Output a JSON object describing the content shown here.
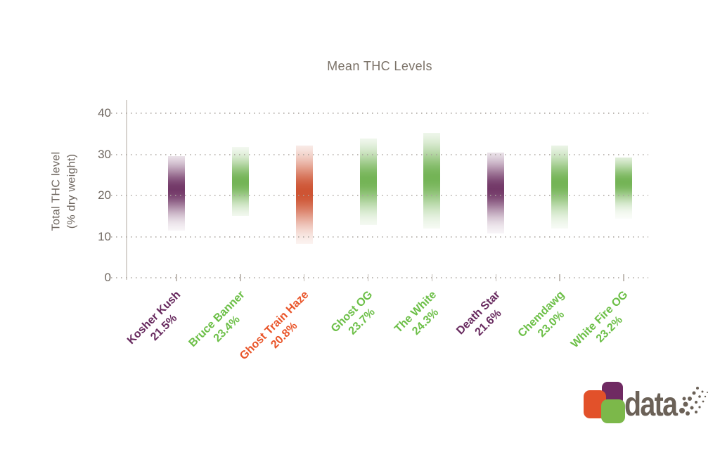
{
  "page": {
    "background": "#ffffff"
  },
  "chart_data": {
    "type": "bar",
    "style": "gaussian-gradient-vertical-bars",
    "title": "Mean THC Levels",
    "xlabel": "",
    "ylabel": "Total THC level (% dry weight)",
    "ylabel_lines": [
      "Total THC level",
      "(% dry weight)"
    ],
    "ylim": [
      0,
      40
    ],
    "yticks": [
      40,
      30,
      20,
      10,
      0
    ],
    "grid": "dotted horizontal gridlines, light vertical axis line, x tick marks at 0 line",
    "legend_position": "none",
    "categories": [
      "Kosher Kush",
      "Bruce Banner",
      "Ghost Train Haze",
      "Ghost OG",
      "The White",
      "Death Star",
      "Chemdawg",
      "White Fire OG"
    ],
    "values": [
      21.5,
      23.4,
      20.8,
      23.7,
      24.3,
      21.6,
      23.0,
      23.2
    ],
    "value_labels": [
      "21.5%",
      "23.4%",
      "20.8%",
      "23.7%",
      "24.3%",
      "21.6%",
      "23.0%",
      "23.2%"
    ],
    "series": [
      {
        "name": "Kosher Kush",
        "mean": 21.5,
        "mean_label": "21.5%",
        "range": [
          11.5,
          29.5
        ],
        "bar_color": "#6E3263",
        "label_color": "#67295E"
      },
      {
        "name": "Bruce Banner",
        "mean": 23.4,
        "mean_label": "23.4%",
        "range": [
          15.1,
          31.8
        ],
        "bar_color": "#6FB150",
        "label_color": "#6CBF47"
      },
      {
        "name": "Ghost Train Haze",
        "mean": 20.8,
        "mean_label": "20.8%",
        "range": [
          8.2,
          32.1
        ],
        "bar_color": "#CC4E2C",
        "label_color": "#E95428"
      },
      {
        "name": "Ghost OG",
        "mean": 23.7,
        "mean_label": "23.7%",
        "range": [
          12.9,
          33.8
        ],
        "bar_color": "#6FB150",
        "label_color": "#6CBF47"
      },
      {
        "name": "The White",
        "mean": 24.3,
        "mean_label": "24.3%",
        "range": [
          12.0,
          35.2
        ],
        "bar_color": "#6FB150",
        "label_color": "#6CBF47"
      },
      {
        "name": "Death Star",
        "mean": 21.6,
        "mean_label": "21.6%",
        "range": [
          10.8,
          30.4
        ],
        "bar_color": "#6E3263",
        "label_color": "#67295E"
      },
      {
        "name": "Chemdawg",
        "mean": 23.0,
        "mean_label": "23.0%",
        "range": [
          12.0,
          32.1
        ],
        "bar_color": "#6FB150",
        "label_color": "#6CBF47"
      },
      {
        "name": "White Fire OG",
        "mean": 23.2,
        "mean_label": "23.2%",
        "range": [
          14.3,
          29.2
        ],
        "bar_color": "#6FB150",
        "label_color": "#6CBF47"
      }
    ],
    "colors": {
      "title_text": "#7B7268",
      "axis_text": "#6F6760",
      "gridline": "#A8A29B",
      "axis_line": "#D8D4D0"
    }
  },
  "logo": {
    "text": "data",
    "text_color": "#6B6157",
    "dots_color": "#6B6157",
    "squares": [
      {
        "name": "purple-square",
        "color": "#6F2A62"
      },
      {
        "name": "orange-square",
        "color": "#E2512A"
      },
      {
        "name": "green-square",
        "color": "#7CB84A"
      }
    ]
  }
}
